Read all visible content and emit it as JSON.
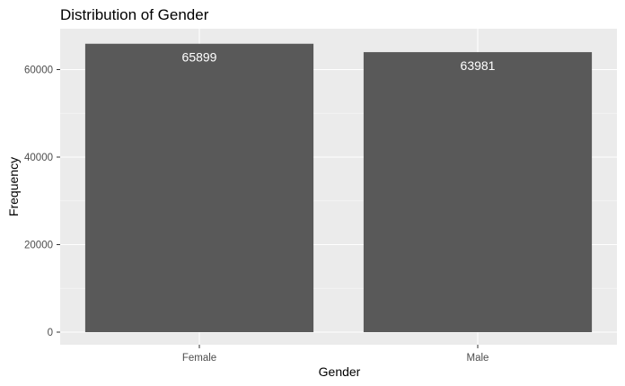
{
  "chart_data": {
    "type": "bar",
    "title": "Distribution of Gender",
    "xlabel": "Gender",
    "ylabel": "Frequency",
    "categories": [
      "Female",
      "Male"
    ],
    "values": [
      65899,
      63981
    ],
    "data_labels": [
      "65899",
      "63981"
    ],
    "ylim": [
      0,
      68000
    ],
    "y_ticks": [
      0,
      20000,
      40000,
      60000
    ],
    "y_tick_labels": [
      "0",
      "20000",
      "40000",
      "60000"
    ],
    "grid": true,
    "legend": "none",
    "colors": {
      "panel_background": "#ebebeb",
      "grid_major": "#ffffff",
      "grid_minor": "#f5f5f5",
      "bar_fill": "#595959",
      "data_label": "#ffffff",
      "tick_label": "#4d4d4d",
      "tick_mark": "#333333"
    }
  }
}
